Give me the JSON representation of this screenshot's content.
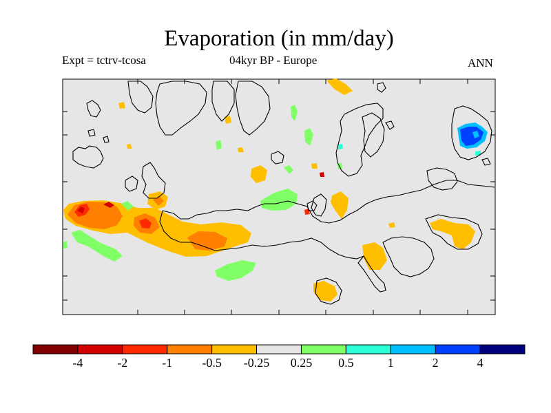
{
  "title": "Evaporation (in mm/day)",
  "subtitle_left": "Expt = tctrv-tcosa",
  "subtitle_center": "04kyr BP - Europe",
  "subtitle_right": "ANN",
  "colors": {
    "background": "#e6e6e6",
    "coastline": "#000000",
    "anomaly_neg_0_25_to_0_5": "#ffbf00",
    "anomaly_neg_0_5_to_1": "#ff7f00",
    "anomaly_neg_1_to_2": "#ff2a00",
    "anomaly_neg_2_to_4": "#d40000",
    "anomaly_lt_neg_4": "#800000",
    "anomaly_pos_0_25_to_0_5": "#80ff66",
    "anomaly_pos_0_5_to_1": "#2affd5",
    "anomaly_pos_1_to_2": "#00bfff",
    "anomaly_pos_2_to_4": "#0040ff"
  },
  "colorbar": {
    "swatches": [
      "#800000",
      "#d40000",
      "#ff2a00",
      "#ff7f00",
      "#ffbf00",
      "#e6e6e6",
      "#80ff66",
      "#2affd5",
      "#00bfff",
      "#0040ff",
      "#00007f"
    ],
    "labels": [
      "-4",
      "-2",
      "-1",
      "-0.5",
      "-0.25",
      "0.25",
      "0.5",
      "1",
      "2",
      "4"
    ]
  }
}
